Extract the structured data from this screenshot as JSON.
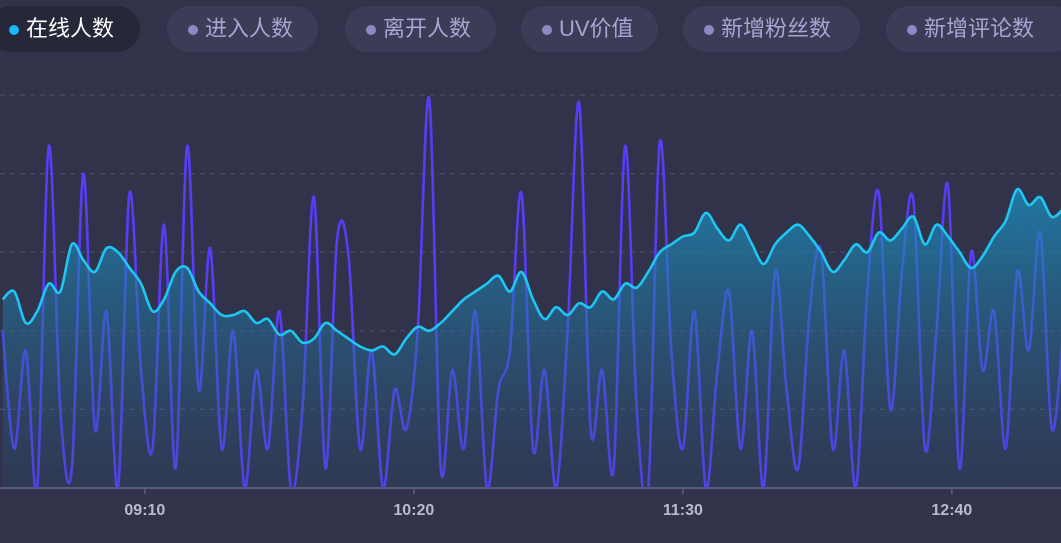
{
  "chart_data": {
    "type": "line",
    "legend": [
      "在线人数",
      "进入人数",
      "离开人数",
      "UV价值",
      "新增粉丝数",
      "新增评论数"
    ],
    "active": 0,
    "active_color": "#19b8f6",
    "inactive_color": "#8c89c4",
    "x": [
      513,
      516,
      519,
      522,
      525,
      528,
      531,
      534,
      537,
      540,
      543,
      546,
      549,
      552,
      555,
      558,
      561,
      564,
      567,
      570,
      573,
      576,
      579,
      582,
      585,
      588,
      591,
      594,
      597,
      600,
      603,
      606,
      609,
      612,
      615,
      618,
      621,
      624,
      627,
      630,
      633,
      636,
      639,
      642,
      645,
      648,
      651,
      654,
      657,
      660,
      663,
      666,
      669,
      672,
      675,
      678,
      681,
      684,
      687,
      690,
      693,
      696,
      699,
      702,
      705,
      708,
      711,
      714,
      717,
      720,
      723,
      726,
      729,
      732,
      735,
      738,
      741,
      744,
      747,
      750,
      753,
      756,
      759,
      762,
      765,
      768,
      771,
      774,
      777,
      780,
      783,
      786,
      789
    ],
    "xlim": [
      512.3,
      788.4
    ],
    "xticks": [
      {
        "value": 550,
        "label": "09:10"
      },
      {
        "value": 620,
        "label": "10:20"
      },
      {
        "value": 690,
        "label": "11:30"
      },
      {
        "value": 760,
        "label": "12:40"
      }
    ],
    "ylim": [
      0,
      100
    ],
    "yticks": [
      0,
      20,
      40,
      60,
      80,
      100
    ],
    "grid": true,
    "series": [
      {
        "color": "#5a3cf4",
        "values": [
          40,
          10,
          35,
          0,
          87,
          20,
          5,
          80,
          15,
          45,
          0,
          75,
          30,
          10,
          67,
          5,
          87,
          25,
          61,
          10,
          40,
          0,
          30,
          10,
          45,
          0,
          20,
          74,
          5,
          63,
          59,
          10,
          35,
          0,
          25,
          15,
          40,
          99,
          5,
          30,
          10,
          45,
          0,
          25,
          35,
          75,
          10,
          30,
          0,
          40,
          98,
          15,
          30,
          5,
          87,
          20,
          0,
          88,
          35,
          10,
          45,
          0,
          30,
          50,
          10,
          40,
          0,
          55,
          25,
          5,
          45,
          60,
          10,
          35,
          0,
          50,
          75,
          20,
          55,
          73,
          10,
          40,
          77,
          5,
          60,
          30,
          45,
          10,
          55,
          35,
          65,
          15,
          40
        ]
      },
      {
        "color": "#1ec6f4",
        "area": true,
        "values": [
          48,
          50,
          42,
          45,
          52,
          50,
          62,
          58,
          55,
          61,
          60,
          56,
          52,
          45,
          48,
          55,
          56,
          50,
          47,
          44,
          44,
          45,
          42,
          43,
          39,
          40,
          37,
          38,
          42,
          40,
          38,
          36,
          35,
          36,
          34,
          38,
          41,
          40,
          42,
          45,
          48,
          50,
          52,
          54,
          50,
          55,
          48,
          43,
          46,
          44,
          47,
          46,
          50,
          48,
          52,
          51,
          55,
          60,
          62,
          64,
          65,
          70,
          66,
          63,
          67,
          62,
          57,
          62,
          65,
          67,
          64,
          60,
          55,
          58,
          62,
          60,
          65,
          63,
          66,
          69,
          62,
          67,
          64,
          60,
          56,
          59,
          64,
          68,
          76,
          72,
          74,
          69,
          71
        ]
      }
    ]
  }
}
